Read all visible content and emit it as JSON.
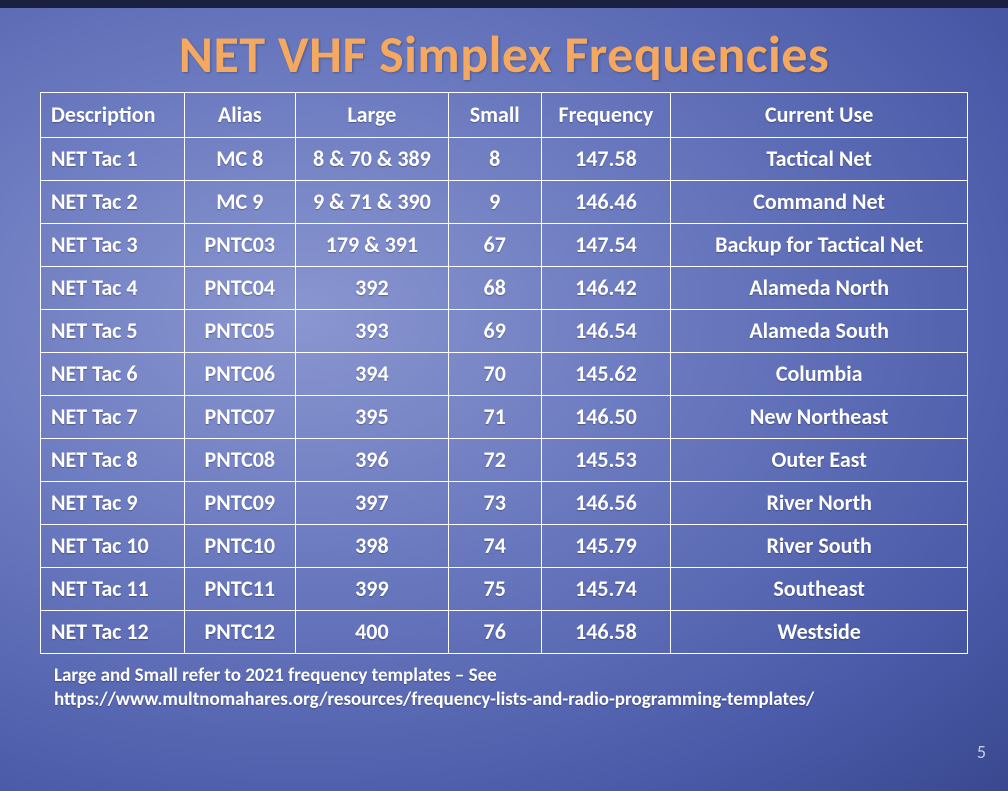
{
  "title": {
    "text": "NET VHF Simplex Frequencies",
    "color": "#f4a860"
  },
  "table": {
    "border_color": "#ffffff",
    "text_color": "#ffffff",
    "header_fontsize": 22,
    "cell_fontsize": 22,
    "col_widths_pct": [
      15.5,
      12,
      16.5,
      10,
      14,
      32
    ],
    "columns": [
      "Description",
      "Alias",
      "Large",
      "Small",
      "Frequency",
      "Current Use"
    ],
    "rows": [
      [
        "NET Tac 1",
        "MC 8",
        "8 & 70 & 389",
        "8",
        "147.58",
        "Tactical Net"
      ],
      [
        "NET Tac 2",
        "MC 9",
        "9 & 71 & 390",
        "9",
        "146.46",
        "Command Net"
      ],
      [
        "NET Tac 3",
        "PNTC03",
        "179 & 391",
        "67",
        "147.54",
        "Backup for Tactical Net"
      ],
      [
        "NET Tac 4",
        "PNTC04",
        "392",
        "68",
        "146.42",
        "Alameda North"
      ],
      [
        "NET Tac 5",
        "PNTC05",
        "393",
        "69",
        "146.54",
        "Alameda South"
      ],
      [
        "NET Tac 6",
        "PNTC06",
        "394",
        "70",
        "145.62",
        "Columbia"
      ],
      [
        "NET Tac 7",
        "PNTC07",
        "395",
        "71",
        "146.50",
        "New Northeast"
      ],
      [
        "NET Tac 8",
        "PNTC08",
        "396",
        "72",
        "145.53",
        "Outer East"
      ],
      [
        "NET Tac 9",
        "PNTC09",
        "397",
        "73",
        "146.56",
        "River North"
      ],
      [
        "NET Tac 10",
        "PNTC10",
        "398",
        "74",
        "145.79",
        "River South"
      ],
      [
        "NET Tac 11",
        "PNTC11",
        "399",
        "75",
        "145.74",
        "Southeast"
      ],
      [
        "NET Tac 12",
        "PNTC12",
        "400",
        "76",
        "146.58",
        "Westside"
      ]
    ]
  },
  "footnote": {
    "line1": "Large and Small refer to 2021 frequency templates – See",
    "line2": "https://www.multnomahares.org/resources/frequency-lists-and-radio-programming-templates/"
  },
  "page_number": "5"
}
